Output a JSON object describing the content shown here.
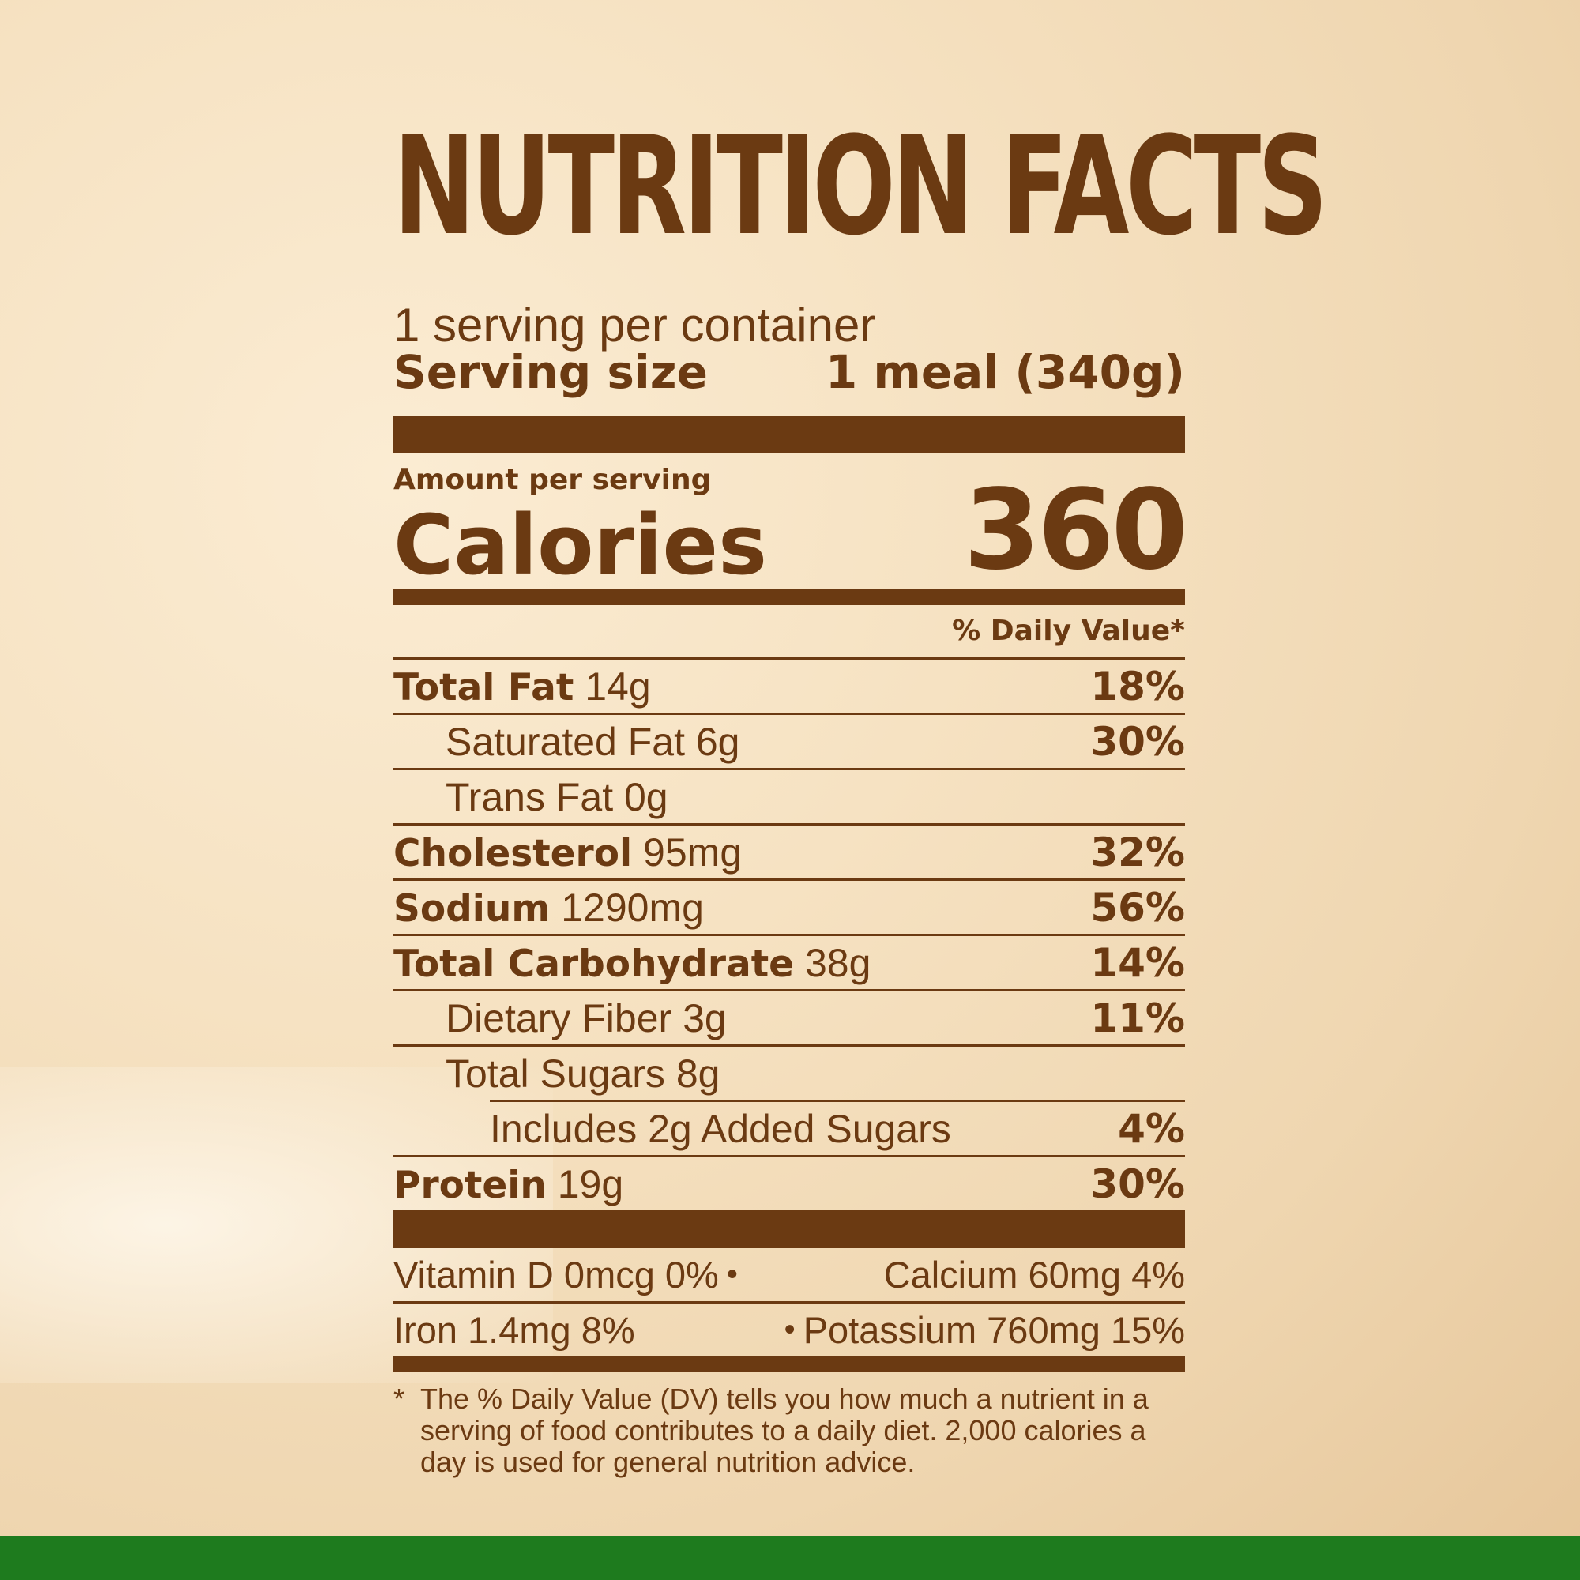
{
  "title": "NUTRITION FACTS",
  "servings_per_container": "1 serving per container",
  "serving_size": {
    "label": "Serving size",
    "value": "1 meal (340g)"
  },
  "amount_per_serving": "Amount per serving",
  "calories": {
    "label": "Calories",
    "value": "360"
  },
  "daily_value_header": "% Daily Value*",
  "nutrients": [
    {
      "name": "Total Fat",
      "amount": "14g",
      "dv": "18%"
    },
    {
      "name": "Saturated Fat 6g",
      "dv": "30%"
    },
    {
      "name": "Trans Fat 0g",
      "dv": ""
    },
    {
      "name": "Cholesterol",
      "amount": "95mg",
      "dv": "32%"
    },
    {
      "name": "Sodium",
      "amount": "1290mg",
      "dv": "56%"
    },
    {
      "name": "Total Carbohydrate",
      "amount": "38g",
      "dv": "14%"
    },
    {
      "name": "Dietary Fiber 3g",
      "dv": "11%"
    },
    {
      "name": "Total Sugars 8g",
      "dv": ""
    },
    {
      "name": "Includes 2g Added Sugars",
      "dv": "4%"
    },
    {
      "name": "Protein",
      "amount": "19g",
      "dv": "30%"
    }
  ],
  "vitamins": [
    {
      "left": "Vitamin D 0mcg 0%",
      "right": "Calcium 60mg 4%"
    },
    {
      "left": "Iron 1.4mg 8%",
      "right": "Potassium 760mg 15%"
    }
  ],
  "separator": "•",
  "footnote": {
    "marker": "*",
    "text": "The % Daily Value (DV) tells you how much a nutrient in a serving of food contributes to a daily diet. 2,000 calories a day is used for general nutrition advice."
  },
  "colors": {
    "text": "#6b3a12",
    "footer_bar": "#1e7b1e",
    "background": "#f6e2c2"
  }
}
